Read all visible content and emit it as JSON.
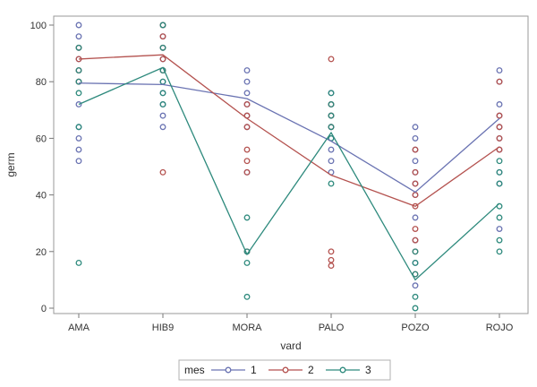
{
  "chart_data": {
    "type": "line",
    "title": "",
    "xlabel": "vard",
    "ylabel": "germ",
    "categories": [
      "AMA",
      "HIB9",
      "MORA",
      "PALO",
      "POZO",
      "ROJO"
    ],
    "ylim": [
      0,
      100
    ],
    "yticks": [
      0,
      20,
      40,
      60,
      80,
      100
    ],
    "grid": false,
    "legend": {
      "title": "mes",
      "placement": "bottom",
      "entries": [
        "1",
        "2",
        "3"
      ]
    },
    "series": [
      {
        "name": "1",
        "color": "#6a73b2",
        "mean": [
          79.5,
          79,
          74,
          59,
          41,
          67
        ],
        "points": [
          [
            100,
            96,
            92,
            88,
            84,
            80,
            72,
            64,
            60,
            56,
            52
          ],
          [
            100,
            96,
            92,
            88,
            84,
            80,
            76,
            72,
            68,
            64
          ],
          [
            84,
            80,
            76,
            72,
            68,
            64,
            48
          ],
          [
            76,
            72,
            68,
            64,
            60,
            56,
            52,
            48
          ],
          [
            64,
            60,
            56,
            52,
            48,
            44,
            40,
            32,
            24,
            16,
            8
          ],
          [
            84,
            80,
            72,
            68,
            64,
            60,
            56,
            48,
            44,
            28
          ]
        ]
      },
      {
        "name": "2",
        "color": "#b4524f",
        "mean": [
          88,
          89.5,
          67,
          47,
          36,
          57
        ],
        "points": [
          [
            92,
            88,
            84,
            80
          ],
          [
            100,
            96,
            92,
            88,
            84,
            48
          ],
          [
            72,
            68,
            64,
            56,
            52,
            48,
            20
          ],
          [
            88,
            72,
            68,
            64,
            20,
            17,
            15
          ],
          [
            56,
            48,
            44,
            40,
            36,
            28,
            24,
            20,
            12
          ],
          [
            80,
            68,
            64,
            60,
            56
          ]
        ]
      },
      {
        "name": "3",
        "color": "#2e8a7d",
        "mean": [
          72,
          85,
          19,
          62,
          10,
          37
        ],
        "points": [
          [
            92,
            84,
            80,
            76,
            64,
            16
          ],
          [
            100,
            92,
            84,
            80,
            76,
            72
          ],
          [
            32,
            20,
            16,
            4
          ],
          [
            76,
            72,
            68,
            64,
            60,
            44
          ],
          [
            20,
            16,
            12,
            4,
            0
          ],
          [
            52,
            48,
            44,
            36,
            32,
            24,
            20
          ]
        ]
      }
    ]
  }
}
